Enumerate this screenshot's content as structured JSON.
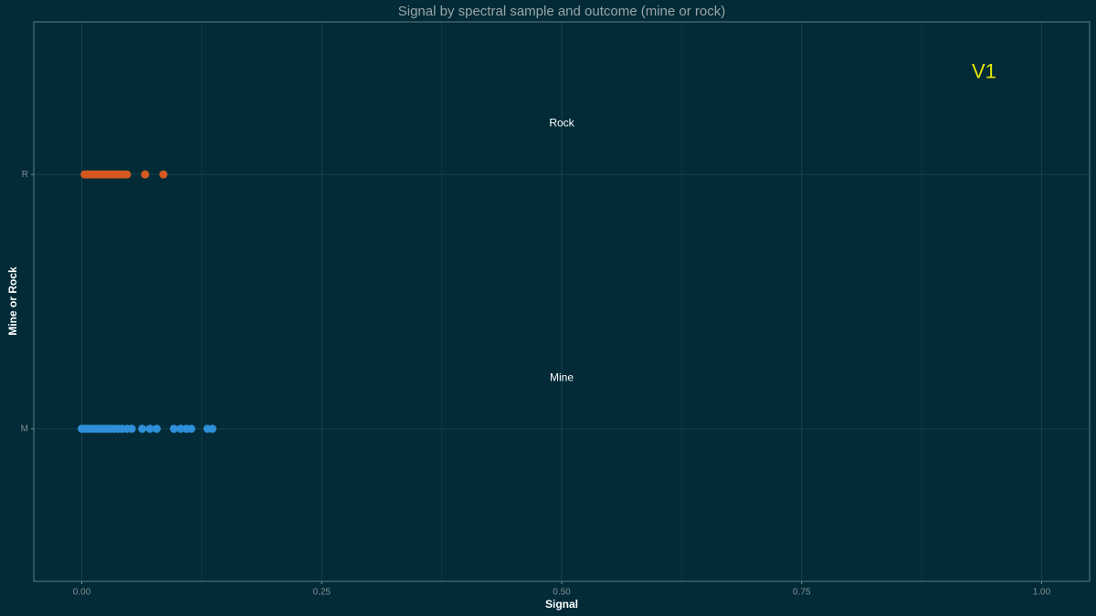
{
  "chart_data": {
    "type": "strip",
    "title": "Signal by spectral sample and outcome (mine or rock)",
    "x_label": "Signal",
    "y_label": "Mine or Rock",
    "xlim": [
      -0.05,
      1.05
    ],
    "xticks": [
      {
        "value": 0,
        "label": "0.00"
      },
      {
        "value": 0.25,
        "label": "0.25"
      },
      {
        "value": 0.5,
        "label": "0.50"
      },
      {
        "value": 0.75,
        "label": "0.75"
      },
      {
        "value": 1,
        "label": "1.00"
      }
    ],
    "x_minor_grid": [
      0.125,
      0.375,
      0.625,
      0.875
    ],
    "ylim": [
      -0.6,
      1.6
    ],
    "grid": true,
    "series": [
      {
        "category": "M",
        "color": "#2f8fd8",
        "x": [
          0.0,
          0.003,
          0.006,
          0.009,
          0.012,
          0.015,
          0.018,
          0.021,
          0.024,
          0.027,
          0.03,
          0.034,
          0.038,
          0.042,
          0.047,
          0.052,
          0.063,
          0.071,
          0.078,
          0.096,
          0.103,
          0.109,
          0.114,
          0.131,
          0.136
        ]
      },
      {
        "category": "R",
        "color": "#d4581f",
        "x": [
          0.003,
          0.006,
          0.009,
          0.012,
          0.015,
          0.018,
          0.021,
          0.024,
          0.027,
          0.03,
          0.033,
          0.036,
          0.039,
          0.043,
          0.047,
          0.066,
          0.085
        ]
      }
    ],
    "annotations": [
      {
        "text": "Rock",
        "x": 0.5,
        "y": 1.2,
        "color": "#ffffff",
        "size": 12
      },
      {
        "text": "Mine",
        "x": 0.5,
        "y": 0.2,
        "color": "#ffffff",
        "size": 12
      },
      {
        "text": "V1",
        "x": 0.94,
        "y": 1.4,
        "color": "#e6e600",
        "size": 22
      }
    ]
  }
}
